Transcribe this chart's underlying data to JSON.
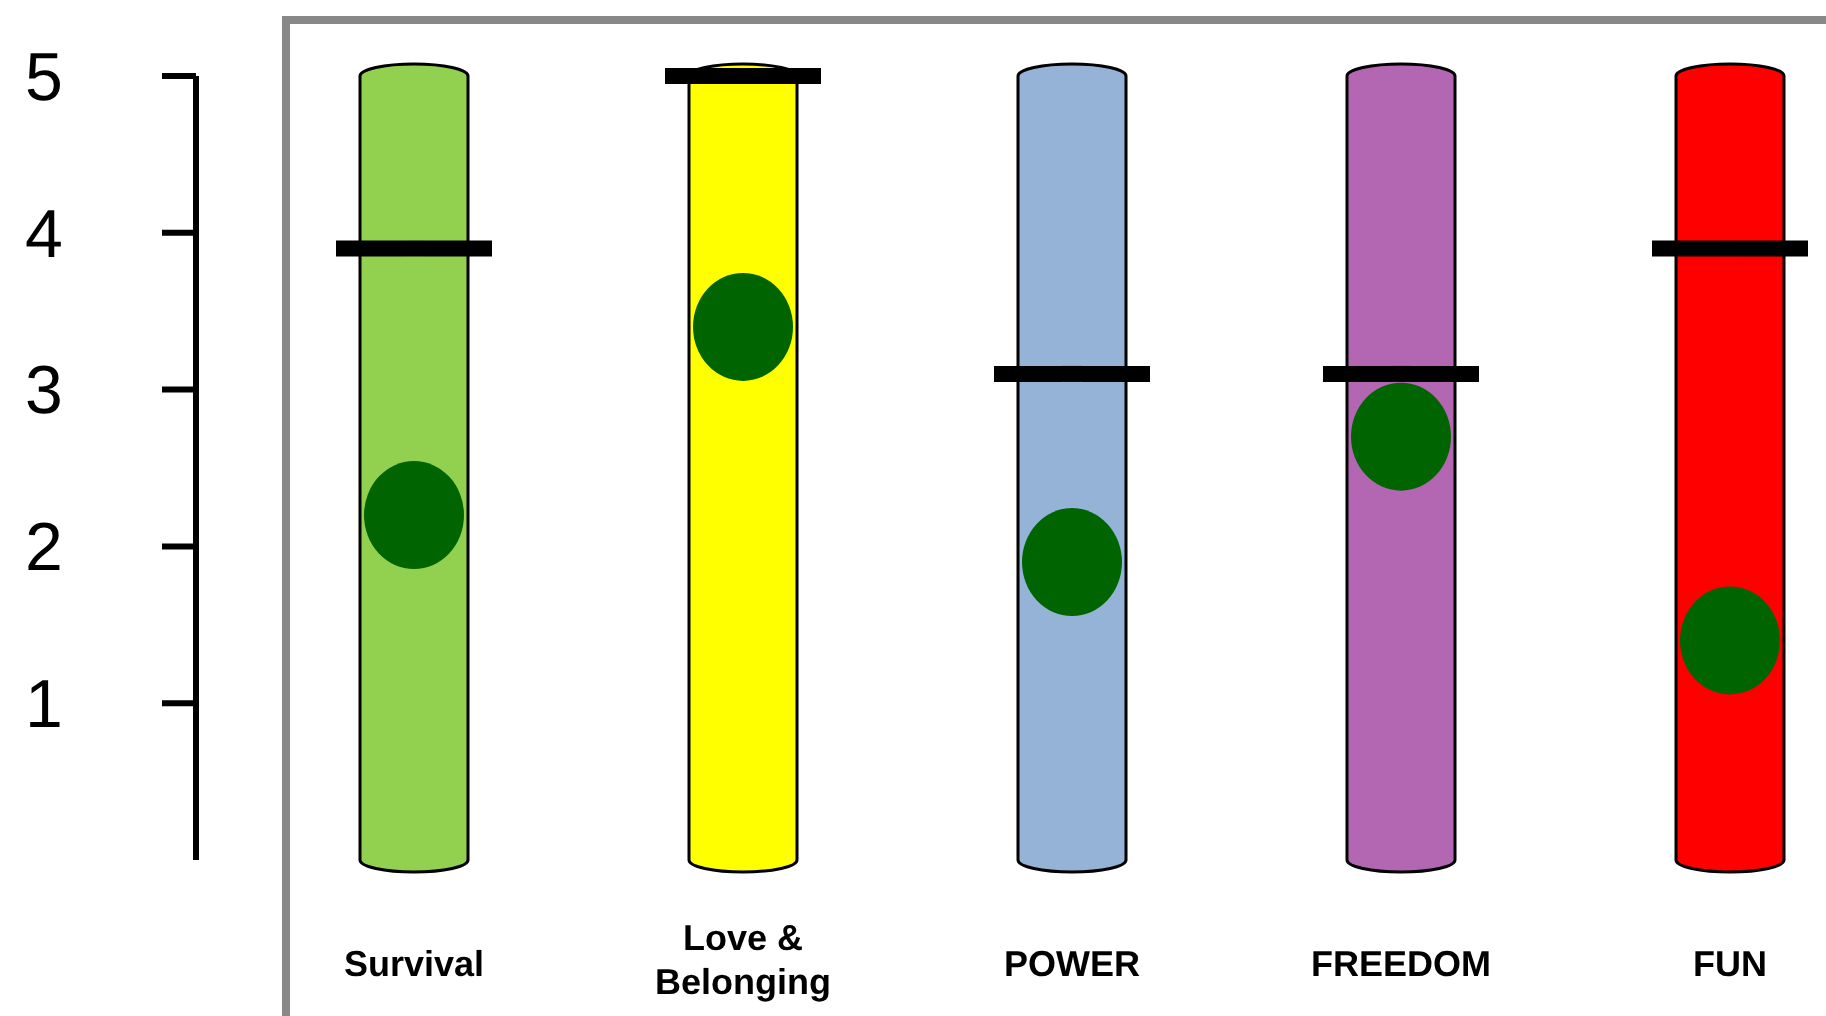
{
  "chart_data": {
    "type": "bar",
    "categories": [
      "Survival",
      "Love & Belonging",
      "POWER",
      "FREEDOM",
      "FUN"
    ],
    "ylim": [
      0,
      5
    ],
    "yticks": [
      1,
      2,
      3,
      4,
      5
    ],
    "grid": false,
    "series": [
      {
        "colors": [
          "#92d050",
          "#ffff00",
          "#95b3d7",
          "#b366b1",
          "#ff0000"
        ],
        "values": [
          5,
          5,
          5,
          5,
          5
        ]
      },
      {
        "type": "scatter",
        "color": "#000000",
        "values": [
          3.9,
          5.0,
          3.1,
          3.1,
          3.9
        ]
      },
      {
        "type": "scatter",
        "marker": "circle",
        "color": "#006400",
        "values": [
          2.2,
          3.4,
          1.9,
          2.7,
          1.4
        ]
      }
    ]
  }
}
